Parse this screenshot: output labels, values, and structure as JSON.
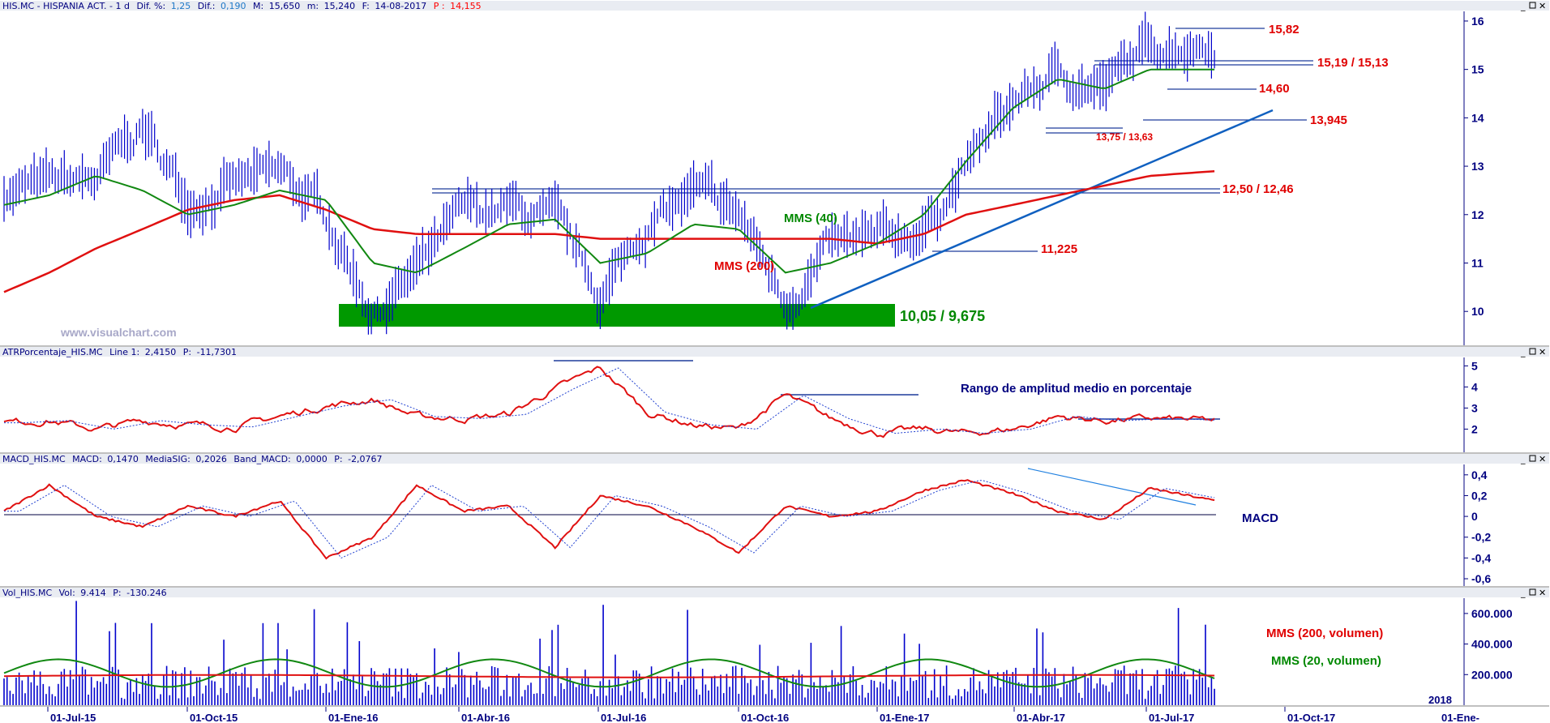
{
  "header": {
    "symbol": "HIS.MC - HISPANIA ACT. - 1 d",
    "dif_pct_label": "Dif. %:",
    "dif_pct_value": "1,25",
    "dif_label": "Dif.:",
    "dif_value": "0,190",
    "max_label": "M:",
    "max_value": "15,650",
    "min_label": "m:",
    "min_value": "15,240",
    "date_label": "F:",
    "date_value": "14-08-2017",
    "p_label": "P :",
    "p_value": "14,155"
  },
  "watermark": "www.visualchart.com",
  "colors": {
    "price": "#0000cc",
    "ma200": "#e01010",
    "ma40": "#118811",
    "support_zone": "#009900",
    "trend": "#1060c0",
    "axis_text": "#000080",
    "annotation_red": "#e00000",
    "annotation_green": "#008800",
    "annotation_blue": "#000080",
    "header_red": "#ff0000",
    "header_blue": "#1e78c8"
  },
  "price_panel": {
    "title": "HIS.MC - HISPANIA ACT. - 1 d",
    "y_ticks": [
      "16",
      "15",
      "14",
      "13",
      "12",
      "11",
      "10"
    ],
    "ylim": [
      9.3,
      16.2
    ],
    "labels": {
      "r1": "15,82",
      "r2": "15,19 / 15,13",
      "r3": "14,60",
      "r4": "13,945",
      "r5": "13,75 / 13,63",
      "r6": "12,50 / 12,46",
      "ma40": "MMS (40)",
      "ma200": "MMS (200)",
      "r7": "11,225",
      "support": "10,05 / 9,675"
    }
  },
  "atr_panel": {
    "header_name": "ATRPorcentaje_HIS.MC",
    "line_label": "Line 1:",
    "line_value": "2,4150",
    "p_label": "P:",
    "p_value": "-11,7301",
    "annotation": "Rango de amplitud medio en porcentaje",
    "y_ticks": [
      "5",
      "4",
      "3",
      "2"
    ],
    "ylim": [
      0.9,
      5.4
    ]
  },
  "macd_panel": {
    "header_name": "MACD_HIS.MC",
    "macd_label": "MACD:",
    "macd_value": "0,1470",
    "sig_label": "MediaSIG:",
    "sig_value": "0,2026",
    "band_label": "Band_MACD:",
    "band_value": "0,0000",
    "p_label": "P:",
    "p_value": "-2,0767",
    "annotation": "MACD",
    "y_ticks": [
      "0,4",
      "0,2",
      "0",
      "-0,2",
      "-0,4",
      "-0,6"
    ],
    "ylim": [
      -0.67,
      0.5
    ]
  },
  "vol_panel": {
    "header_name": "Vol_HIS.MC",
    "vol_label": "Vol:",
    "vol_value": "9.414",
    "p_label": "P:",
    "p_value": "-130.246",
    "annotation_ma200": "MMS (200, volumen)",
    "annotation_ma20": "MMS (20, volumen)",
    "y_ticks": [
      "600.000",
      "400.000",
      "200.000"
    ],
    "ylim": [
      0,
      700000
    ]
  },
  "x_axis": {
    "labels": [
      "01-Jul-15",
      "01-Oct-15",
      "01-Ene-16",
      "01-Abr-16",
      "01-Jul-16",
      "01-Oct-16",
      "01-Ene-17",
      "01-Abr-17",
      "01-Jul-17",
      "01-Oct-17",
      "2018",
      "01-Ene-"
    ]
  },
  "chart_data": {
    "type": "line",
    "title": "HIS.MC - HISPANIA ACT. - 1 d",
    "x": [
      "2015-06-01",
      "2015-07-01",
      "2015-08-01",
      "2015-09-01",
      "2015-10-01",
      "2015-11-01",
      "2015-12-01",
      "2016-01-01",
      "2016-02-01",
      "2016-03-01",
      "2016-04-01",
      "2016-05-01",
      "2016-06-01",
      "2016-07-01",
      "2016-08-01",
      "2016-09-01",
      "2016-10-01",
      "2016-11-01",
      "2016-12-01",
      "2017-01-01",
      "2017-02-01",
      "2017-03-01",
      "2017-04-01",
      "2017-05-01",
      "2017-06-01",
      "2017-07-01",
      "2017-08-14"
    ],
    "series": [
      {
        "name": "HIS.MC",
        "values": [
          12.5,
          12.6,
          12.7,
          13.8,
          12.3,
          12.6,
          12.8,
          12.0,
          10.0,
          10.8,
          12.0,
          12.1,
          11.8,
          10.3,
          11.8,
          12.4,
          12.0,
          10.2,
          11.3,
          11.4,
          11.7,
          13.0,
          14.3,
          14.9,
          14.6,
          15.5,
          15.6
        ]
      },
      {
        "name": "MMS (40)",
        "values": [
          12.2,
          12.4,
          12.8,
          12.5,
          12.0,
          12.2,
          12.5,
          12.3,
          11.0,
          10.8,
          11.3,
          11.8,
          11.9,
          11.0,
          11.2,
          11.8,
          11.7,
          10.8,
          11.0,
          11.4,
          12.0,
          13.1,
          14.2,
          14.8,
          14.6,
          15.0,
          15.0
        ]
      },
      {
        "name": "MMS (200)",
        "values": [
          10.4,
          10.8,
          11.3,
          11.7,
          12.1,
          12.3,
          12.4,
          12.1,
          11.7,
          11.6,
          11.6,
          11.6,
          11.6,
          11.5,
          11.5,
          11.5,
          11.5,
          11.5,
          11.5,
          11.4,
          11.6,
          12.0,
          12.2,
          12.4,
          12.6,
          12.8,
          12.9
        ]
      }
    ],
    "levels": [
      15.82,
      15.19,
      15.13,
      14.6,
      13.945,
      13.75,
      13.63,
      12.5,
      12.46,
      11.225,
      10.05,
      9.675
    ],
    "indicators": {
      "atr": {
        "values": [
          2.3,
          2.4,
          2.0,
          2.4,
          2.2,
          2.1,
          2.6,
          3.1,
          3.4,
          2.6,
          2.5,
          2.7,
          3.9,
          4.9,
          2.8,
          2.2,
          2.0,
          3.6,
          2.5,
          1.8,
          2.0,
          1.8,
          2.0,
          2.6,
          2.4,
          2.5,
          2.4
        ],
        "levels": [
          5.1,
          3.7,
          2.6
        ]
      },
      "macd": {
        "values": [
          0.05,
          0.3,
          0.0,
          -0.1,
          0.1,
          0.0,
          0.15,
          -0.4,
          -0.2,
          0.3,
          0.05,
          0.1,
          -0.3,
          0.2,
          0.1,
          -0.1,
          -0.35,
          0.1,
          0.0,
          0.05,
          0.25,
          0.35,
          0.22,
          0.05,
          -0.03,
          0.27,
          0.15
        ]
      },
      "volume": {
        "ma200": 190000,
        "ma20_range": [
          120000,
          300000
        ],
        "max": 690000
      }
    },
    "ylim": [
      9.3,
      16.2
    ],
    "grid": false,
    "legend": "none"
  }
}
